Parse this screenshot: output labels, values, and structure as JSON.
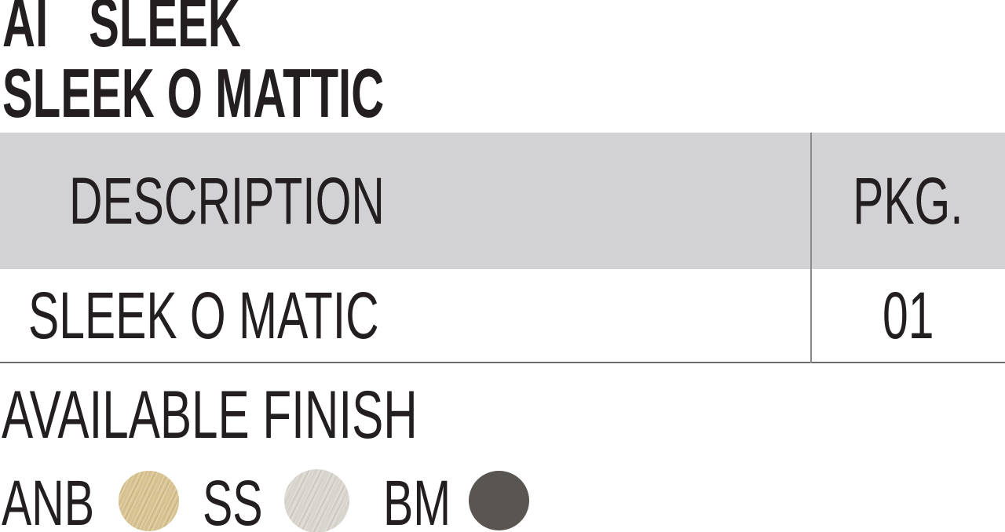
{
  "title": {
    "line1": "AI  SLEEK",
    "line2": "SLEEK O MATTIC"
  },
  "table": {
    "columns": [
      "DESCRIPTION",
      "PKG."
    ],
    "rows": [
      {
        "description": "SLEEK O MATIC",
        "pkg": "01"
      }
    ]
  },
  "finish": {
    "heading": "AVAILABLE FINISH",
    "swatches": [
      {
        "code": "ANB",
        "color": "#d7c28f"
      },
      {
        "code": "SS",
        "color": "#d8d5cf"
      },
      {
        "code": "BM",
        "color": "#595651"
      }
    ]
  },
  "colors": {
    "text": "#231f20",
    "header_bg": "#d2d2d4",
    "divider": "#8a8a8a",
    "row_border": "#6b6b6b"
  }
}
